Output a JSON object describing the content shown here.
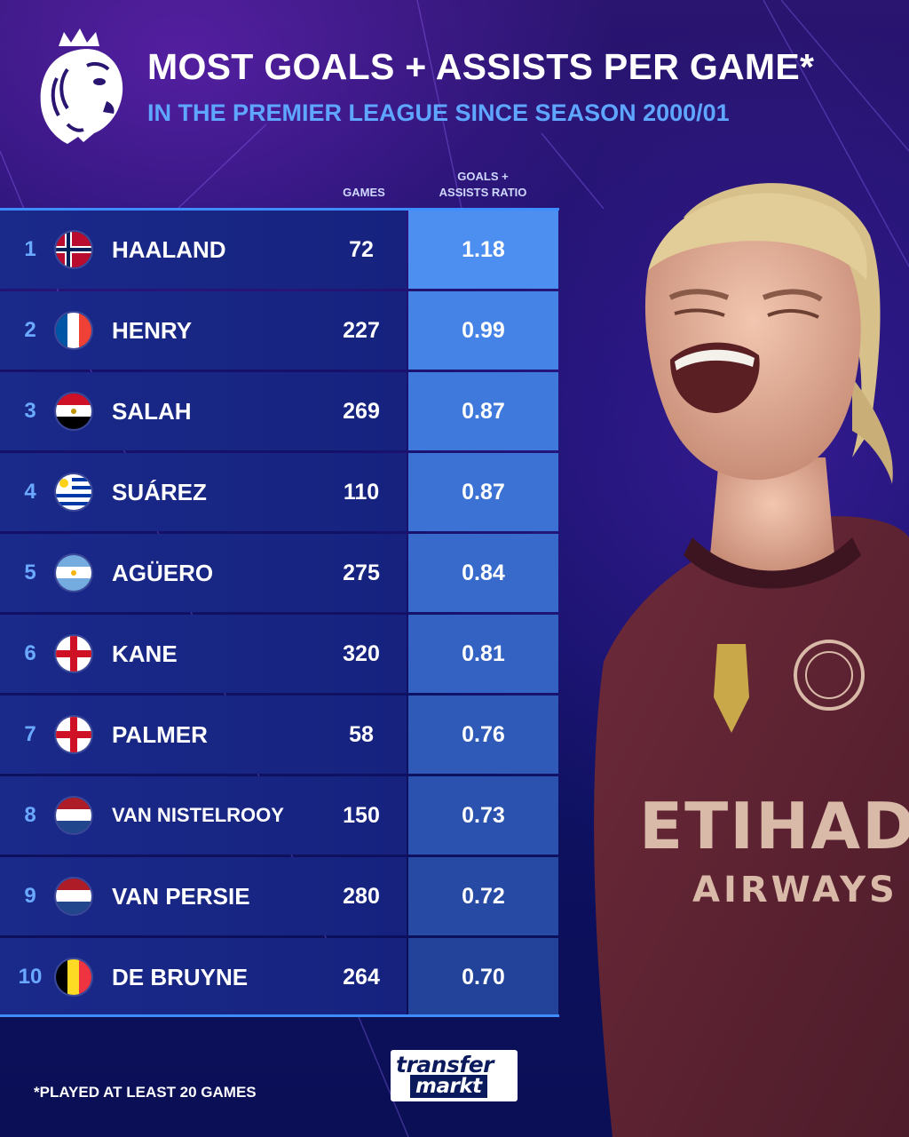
{
  "header": {
    "title": "MOST GOALS + ASSISTS PER GAME*",
    "subtitle": "IN THE PREMIER LEAGUE SINCE SEASON 2000/01"
  },
  "columns": {
    "games": "GAMES",
    "ratio_line1": "GOALS +",
    "ratio_line2": "ASSISTS RATIO"
  },
  "rows": [
    {
      "rank": "1",
      "name": "HAALAND",
      "flag": "norway-flag",
      "games": "72",
      "ratio": "1.18",
      "cell_color": "#4d8ff0"
    },
    {
      "rank": "2",
      "name": "HENRY",
      "flag": "france-flag",
      "games": "227",
      "ratio": "0.99",
      "cell_color": "#4583e6"
    },
    {
      "rank": "3",
      "name": "SALAH",
      "flag": "egypt-flag",
      "games": "269",
      "ratio": "0.87",
      "cell_color": "#3f79dc"
    },
    {
      "rank": "4",
      "name": "SUÁREZ",
      "flag": "uruguay-flag",
      "games": "110",
      "ratio": "0.87",
      "cell_color": "#3b72d4"
    },
    {
      "rank": "5",
      "name": "AGÜERO",
      "flag": "argentina-flag",
      "games": "275",
      "ratio": "0.84",
      "cell_color": "#376acb"
    },
    {
      "rank": "6",
      "name": "KANE",
      "flag": "england-flag",
      "games": "320",
      "ratio": "0.81",
      "cell_color": "#3362c2"
    },
    {
      "rank": "7",
      "name": "PALMER",
      "flag": "england-flag",
      "games": "58",
      "ratio": "0.76",
      "cell_color": "#2f5ab8"
    },
    {
      "rank": "8",
      "name": "VAN NISTELROOY",
      "flag": "netherlands-flag",
      "games": "150",
      "ratio": "0.73",
      "cell_color": "#2b52ae"
    },
    {
      "rank": "9",
      "name": "VAN PERSIE",
      "flag": "netherlands-flag",
      "games": "280",
      "ratio": "0.72",
      "cell_color": "#274aa4"
    },
    {
      "rank": "10",
      "name": "DE BRUYNE",
      "flag": "belgium-flag",
      "games": "264",
      "ratio": "0.70",
      "cell_color": "#23439a"
    }
  ],
  "footer": {
    "footnote": "*PLAYED AT LEAST 20 GAMES",
    "brand_line1": "transfer",
    "brand_line2": "markt"
  },
  "colors": {
    "accent": "#3e8dff",
    "subtitle": "#5ea6ff",
    "rank": "#6aa9ff",
    "row": "#1a2a8a"
  },
  "icons": {
    "league_logo": "premier-league-lion-icon",
    "player_photo": "player-photo"
  }
}
